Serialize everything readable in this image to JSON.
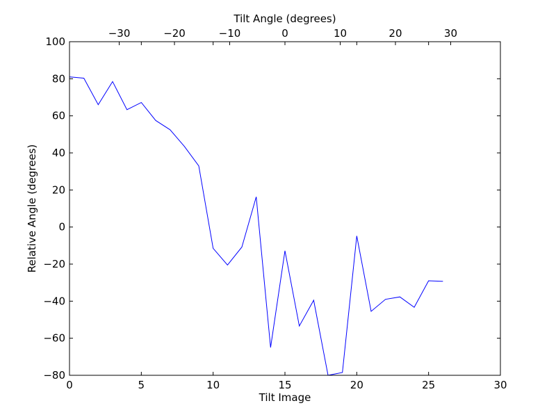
{
  "chart_data": {
    "type": "line",
    "xlabel": "Tilt Image",
    "ylabel": "Relative Angle (degrees)",
    "x2label": "Tilt Angle (degrees)",
    "xlim": [
      0,
      30
    ],
    "ylim": [
      -80,
      100
    ],
    "x2lim": [
      -39,
      39
    ],
    "xticks": [
      0,
      5,
      10,
      15,
      20,
      25,
      30
    ],
    "yticks": [
      -80,
      -60,
      -40,
      -20,
      0,
      20,
      40,
      60,
      80,
      100
    ],
    "x2ticks": [
      -30,
      -20,
      -10,
      0,
      10,
      20,
      30
    ],
    "xtick_labels": [
      "0",
      "5",
      "10",
      "15",
      "20",
      "25",
      "30"
    ],
    "ytick_labels": [
      "−80",
      "−60",
      "−40",
      "−20",
      "0",
      "20",
      "40",
      "60",
      "80",
      "100"
    ],
    "x2tick_labels": [
      "−30",
      "−20",
      "−10",
      "0",
      "10",
      "20",
      "30"
    ],
    "grid": false,
    "line_color": "#0000ff",
    "series": [
      {
        "x": [
          0,
          1,
          2,
          3,
          4,
          5,
          6,
          7,
          8,
          9,
          10,
          11,
          12,
          13,
          14,
          15,
          16,
          17,
          18,
          19,
          20,
          21,
          22,
          23,
          24,
          25,
          26
        ],
        "y": [
          81,
          80.3,
          66,
          78.5,
          63.3,
          67.2,
          57.5,
          52.5,
          43.5,
          33,
          -11.5,
          -20.5,
          -10.8,
          16.3,
          -65,
          -12.8,
          -53.4,
          -39.5,
          -80,
          -78.5,
          -4.8,
          -45.5,
          -39,
          -37.7,
          -43.3,
          -29,
          -29.3
        ]
      }
    ]
  }
}
